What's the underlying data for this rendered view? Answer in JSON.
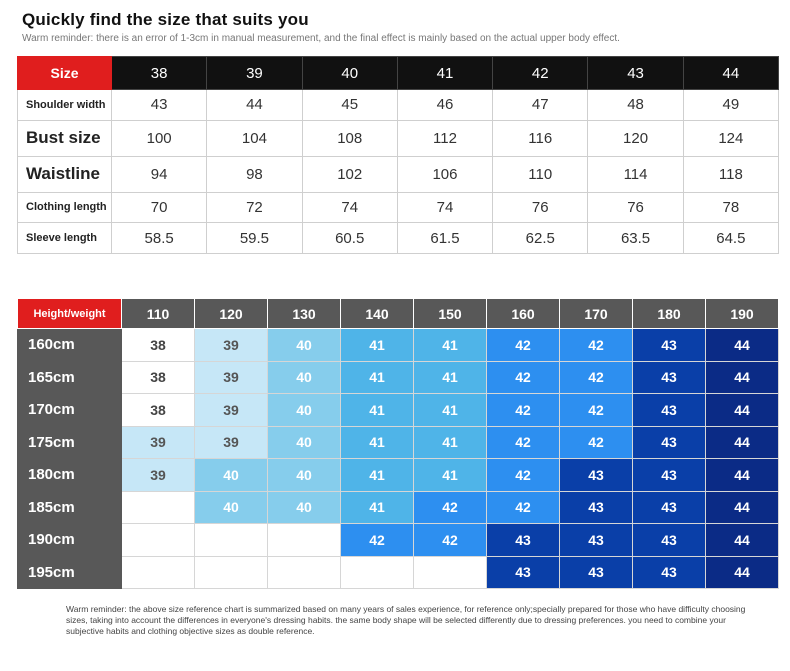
{
  "title": "Quickly find the size that suits you",
  "subtitle": "Warm reminder: there is an error of 1-3cm in manual measurement, and the final effect is mainly based on the actual upper body effect.",
  "size_table": {
    "corner": "Size",
    "sizes": [
      "38",
      "39",
      "40",
      "41",
      "42",
      "43",
      "44"
    ],
    "rows": [
      {
        "label": "Shoulder width",
        "values": [
          "43",
          "44",
          "45",
          "46",
          "47",
          "48",
          "49"
        ]
      },
      {
        "label": "Bust size",
        "values": [
          "100",
          "104",
          "108",
          "112",
          "116",
          "120",
          "124"
        ]
      },
      {
        "label": "Waistline",
        "values": [
          "94",
          "98",
          "102",
          "106",
          "110",
          "114",
          "118"
        ]
      },
      {
        "label": "Clothing length",
        "values": [
          "70",
          "72",
          "74",
          "74",
          "76",
          "76",
          "78"
        ]
      },
      {
        "label": "Sleeve length",
        "values": [
          "58.5",
          "59.5",
          "60.5",
          "61.5",
          "62.5",
          "63.5",
          "64.5"
        ]
      }
    ]
  },
  "hw_table": {
    "corner": "Height/weight",
    "weights": [
      "110",
      "120",
      "130",
      "140",
      "150",
      "160",
      "170",
      "180",
      "190"
    ],
    "rows": [
      {
        "height": "160cm",
        "cells": [
          "38",
          "39",
          "40",
          "41",
          "41",
          "42",
          "42",
          "43",
          "44"
        ]
      },
      {
        "height": "165cm",
        "cells": [
          "38",
          "39",
          "40",
          "41",
          "41",
          "42",
          "42",
          "43",
          "44"
        ]
      },
      {
        "height": "170cm",
        "cells": [
          "38",
          "39",
          "40",
          "41",
          "41",
          "42",
          "42",
          "43",
          "44"
        ]
      },
      {
        "height": "175cm",
        "cells": [
          "39",
          "39",
          "40",
          "41",
          "41",
          "42",
          "42",
          "43",
          "44"
        ]
      },
      {
        "height": "180cm",
        "cells": [
          "39",
          "40",
          "40",
          "41",
          "41",
          "42",
          "43",
          "43",
          "44"
        ]
      },
      {
        "height": "185cm",
        "cells": [
          "",
          "40",
          "40",
          "41",
          "42",
          "42",
          "43",
          "43",
          "44"
        ]
      },
      {
        "height": "190cm",
        "cells": [
          "",
          "",
          "",
          "42",
          "42",
          "43",
          "43",
          "43",
          "44"
        ]
      },
      {
        "height": "195cm",
        "cells": [
          "",
          "",
          "",
          "",
          "",
          "43",
          "43",
          "43",
          "44"
        ]
      }
    ]
  },
  "footer": "Warm reminder: the above size reference chart is summarized based on many years of sales experience, for reference only;specially prepared for those who have difficulty choosing sizes, taking into account the differences in everyone's dressing habits. the same body shape will be selected differently due to dressing preferences. you need to combine your subjective habits and clothing objective sizes as double reference."
}
